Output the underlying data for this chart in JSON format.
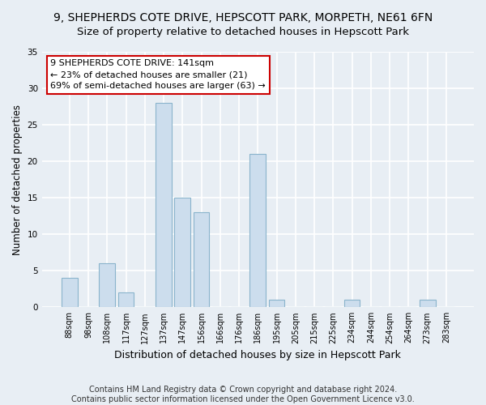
{
  "title": "9, SHEPHERDS COTE DRIVE, HEPSCOTT PARK, MORPETH, NE61 6FN",
  "subtitle": "Size of property relative to detached houses in Hepscott Park",
  "xlabel": "Distribution of detached houses by size in Hepscott Park",
  "ylabel": "Number of detached properties",
  "categories": [
    "88sqm",
    "98sqm",
    "108sqm",
    "117sqm",
    "127sqm",
    "137sqm",
    "147sqm",
    "156sqm",
    "166sqm",
    "176sqm",
    "186sqm",
    "195sqm",
    "205sqm",
    "215sqm",
    "225sqm",
    "234sqm",
    "244sqm",
    "254sqm",
    "264sqm",
    "273sqm",
    "283sqm"
  ],
  "values": [
    4,
    0,
    6,
    2,
    0,
    28,
    15,
    13,
    0,
    0,
    21,
    1,
    0,
    0,
    0,
    1,
    0,
    0,
    0,
    1,
    0
  ],
  "bar_color": "#ccdded",
  "bar_edge_color": "#8ab4cc",
  "annotation_text": "9 SHEPHERDS COTE DRIVE: 141sqm\n← 23% of detached houses are smaller (21)\n69% of semi-detached houses are larger (63) →",
  "annotation_box_color": "#ffffff",
  "annotation_box_edge": "#cc0000",
  "ylim": [
    0,
    35
  ],
  "yticks": [
    0,
    5,
    10,
    15,
    20,
    25,
    30,
    35
  ],
  "footnote1": "Contains HM Land Registry data © Crown copyright and database right 2024.",
  "footnote2": "Contains public sector information licensed under the Open Government Licence v3.0.",
  "background_color": "#e8eef4",
  "grid_color": "#ffffff",
  "title_fontsize": 10,
  "subtitle_fontsize": 9.5,
  "xlabel_fontsize": 9,
  "ylabel_fontsize": 8.5,
  "tick_fontsize": 7,
  "annotation_fontsize": 8,
  "footnote_fontsize": 7
}
